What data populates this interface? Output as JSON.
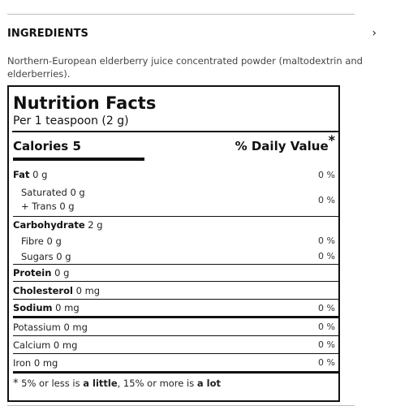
{
  "ingredients": {
    "title": "INGREDIENTS",
    "expand_icon": "chevron-right-icon",
    "text": "Northern-European elderberry juice concentrated powder (maltodextrin and elderberries)."
  },
  "nutrition": {
    "title": "Nutrition Facts",
    "serving": "Per 1 teaspoon (2 g)",
    "calories_label": "Calories 5",
    "daily_value_label": "% Daily Value",
    "daily_value_mark": "*",
    "fat": {
      "label": "Fat",
      "amount": " 0 g",
      "pct": "0 %"
    },
    "saturated": {
      "label": "Saturated 0 g",
      "pct": "0 %"
    },
    "trans": {
      "label": "+ Trans 0 g"
    },
    "carbohydrate": {
      "label": "Carbohydrate",
      "amount": " 2 g"
    },
    "fibre": {
      "label": "Fibre 0 g",
      "pct": "0 %"
    },
    "sugars": {
      "label": "Sugars 0 g",
      "pct": "0 %"
    },
    "protein": {
      "label": "Protein",
      "amount": " 0 g"
    },
    "cholesterol": {
      "label": "Cholesterol",
      "amount": " 0 mg"
    },
    "sodium": {
      "label": "Sodium",
      "amount": " 0 mg",
      "pct": "0 %"
    },
    "potassium": {
      "label": "Potassium 0 mg",
      "pct": "0 %"
    },
    "calcium": {
      "label": "Calcium 0 mg",
      "pct": "0 %"
    },
    "iron": {
      "label": "Iron 0 mg",
      "pct": "0 %"
    },
    "footnote": {
      "star": "*",
      "part1": " 5% or less is ",
      "little": "a little",
      "part2": ", 15% or more is ",
      "lot": "a lot"
    }
  }
}
